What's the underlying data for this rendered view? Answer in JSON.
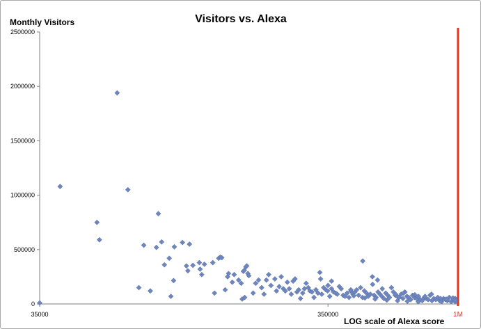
{
  "chart_data": {
    "type": "scatter",
    "title": "Visitors vs. Alexa",
    "ylabel": "Monthly Visitors",
    "xlabel": "LOG scale of Alexa score",
    "x_scale": "log",
    "xlim": [
      35000,
      1000000
    ],
    "ylim": [
      0,
      2500000
    ],
    "y_ticks": [
      "0",
      "500000",
      "1000000",
      "1500000",
      "2000000",
      "2500000"
    ],
    "y_tick_values": [
      0,
      500000,
      1000000,
      1500000,
      2000000,
      2500000
    ],
    "x_ticks": [
      "35000",
      "350000"
    ],
    "x_tick_values": [
      35000,
      350000
    ],
    "grid": false,
    "legend": "none",
    "marker_color": "#6E86BF",
    "reference_line": {
      "x": 1000000,
      "label": "1M",
      "color": "#E8321E"
    },
    "points": [
      [
        35000,
        10000
      ],
      [
        41200,
        1080000
      ],
      [
        55300,
        750000
      ],
      [
        56400,
        590000
      ],
      [
        65000,
        1940000
      ],
      [
        70800,
        1050000
      ],
      [
        77300,
        150000
      ],
      [
        80400,
        540000
      ],
      [
        84700,
        120000
      ],
      [
        88900,
        520000
      ],
      [
        90300,
        830000
      ],
      [
        92700,
        570000
      ],
      [
        94800,
        360000
      ],
      [
        98500,
        420000
      ],
      [
        99800,
        70000
      ],
      [
        102000,
        215000
      ],
      [
        102600,
        525000
      ],
      [
        109500,
        565000
      ],
      [
        113000,
        350000
      ],
      [
        114300,
        305000
      ],
      [
        115800,
        550000
      ],
      [
        119000,
        355000
      ],
      [
        125300,
        380000
      ],
      [
        126000,
        320000
      ],
      [
        127700,
        270000
      ],
      [
        130500,
        365000
      ],
      [
        139500,
        380000
      ],
      [
        141400,
        100000
      ],
      [
        146200,
        420000
      ],
      [
        148000,
        430000
      ],
      [
        149900,
        425000
      ],
      [
        154000,
        130000
      ],
      [
        157000,
        250000
      ],
      [
        158200,
        280000
      ],
      [
        163000,
        200000
      ],
      [
        165500,
        270000
      ],
      [
        171400,
        220000
      ],
      [
        175000,
        190000
      ],
      [
        176400,
        45000
      ],
      [
        178000,
        300000
      ],
      [
        179500,
        310000
      ],
      [
        180000,
        60000
      ],
      [
        181600,
        340000
      ],
      [
        183000,
        350000
      ],
      [
        184600,
        280000
      ],
      [
        186000,
        260000
      ],
      [
        192500,
        100000
      ],
      [
        196500,
        190000
      ],
      [
        201000,
        220000
      ],
      [
        206000,
        150000
      ],
      [
        210000,
        90000
      ],
      [
        214000,
        220000
      ],
      [
        218000,
        270000
      ],
      [
        222000,
        170000
      ],
      [
        229000,
        230000
      ],
      [
        232000,
        120000
      ],
      [
        237000,
        160000
      ],
      [
        241000,
        250000
      ],
      [
        245000,
        140000
      ],
      [
        249000,
        120000
      ],
      [
        253000,
        200000
      ],
      [
        257000,
        140000
      ],
      [
        261000,
        90000
      ],
      [
        265000,
        210000
      ],
      [
        269000,
        230000
      ],
      [
        273000,
        110000
      ],
      [
        277000,
        130000
      ],
      [
        281000,
        50000
      ],
      [
        286000,
        100000
      ],
      [
        290000,
        140000
      ],
      [
        294000,
        190000
      ],
      [
        299000,
        150000
      ],
      [
        303000,
        120000
      ],
      [
        308000,
        110000
      ],
      [
        313000,
        60000
      ],
      [
        318000,
        130000
      ],
      [
        323000,
        100000
      ],
      [
        328000,
        290000
      ],
      [
        333000,
        90000
      ],
      [
        338000,
        150000
      ],
      [
        344000,
        130000
      ],
      [
        349000,
        120000
      ],
      [
        355000,
        70000
      ],
      [
        360000,
        140000
      ],
      [
        366000,
        110000
      ],
      [
        372000,
        100000
      ],
      [
        377000,
        90000
      ],
      [
        383000,
        160000
      ],
      [
        389000,
        140000
      ],
      [
        395000,
        80000
      ],
      [
        401000,
        70000
      ],
      [
        408000,
        100000
      ],
      [
        414000,
        60000
      ],
      [
        420000,
        120000
      ],
      [
        427000,
        90000
      ],
      [
        434000,
        110000
      ],
      [
        440000,
        130000
      ],
      [
        447000,
        80000
      ],
      [
        454000,
        150000
      ],
      [
        461000,
        60000
      ],
      [
        468000,
        120000
      ],
      [
        476000,
        100000
      ],
      [
        483000,
        70000
      ],
      [
        491000,
        90000
      ],
      [
        499000,
        250000
      ],
      [
        506000,
        80000
      ],
      [
        514000,
        60000
      ],
      [
        522000,
        110000
      ],
      [
        530000,
        90000
      ],
      [
        538000,
        70000
      ],
      [
        547000,
        50000
      ],
      [
        555000,
        100000
      ],
      [
        564000,
        80000
      ],
      [
        572000,
        60000
      ],
      [
        581000,
        150000
      ],
      [
        590000,
        110000
      ],
      [
        599000,
        80000
      ],
      [
        609000,
        70000
      ],
      [
        618000,
        60000
      ],
      [
        628000,
        90000
      ],
      [
        637000,
        50000
      ],
      [
        647000,
        110000
      ],
      [
        657000,
        70000
      ],
      [
        667000,
        60000
      ],
      [
        678000,
        40000
      ],
      [
        688000,
        80000
      ],
      [
        699000,
        60000
      ],
      [
        710000,
        50000
      ],
      [
        721000,
        70000
      ],
      [
        732000,
        40000
      ],
      [
        743000,
        30000
      ],
      [
        755000,
        60000
      ],
      [
        767000,
        50000
      ],
      [
        779000,
        40000
      ],
      [
        791000,
        80000
      ],
      [
        803000,
        30000
      ],
      [
        815000,
        50000
      ],
      [
        828000,
        40000
      ],
      [
        841000,
        60000
      ],
      [
        854000,
        30000
      ],
      [
        867000,
        20000
      ],
      [
        881000,
        50000
      ],
      [
        894000,
        40000
      ],
      [
        908000,
        30000
      ],
      [
        922000,
        60000
      ],
      [
        937000,
        20000
      ],
      [
        951000,
        40000
      ],
      [
        966000,
        30000
      ],
      [
        981000,
        50000
      ],
      [
        996000,
        20000
      ],
      [
        462000,
        395000
      ],
      [
        350000,
        170000
      ],
      [
        330000,
        230000
      ],
      [
        360000,
        210000
      ],
      [
        420000,
        130000
      ],
      [
        500000,
        180000
      ],
      [
        520000,
        220000
      ],
      [
        540000,
        140000
      ],
      [
        600000,
        90000
      ],
      [
        640000,
        100000
      ],
      [
        700000,
        85000
      ],
      [
        760000,
        70000
      ],
      [
        800000,
        90000
      ],
      [
        860000,
        50000
      ],
      [
        900000,
        45000
      ],
      [
        950000,
        55000
      ],
      [
        980000,
        35000
      ],
      [
        430000,
        75000
      ],
      [
        470000,
        55000
      ],
      [
        510000,
        45000
      ],
      [
        560000,
        35000
      ],
      [
        610000,
        30000
      ],
      [
        660000,
        25000
      ],
      [
        720000,
        20000
      ]
    ]
  }
}
